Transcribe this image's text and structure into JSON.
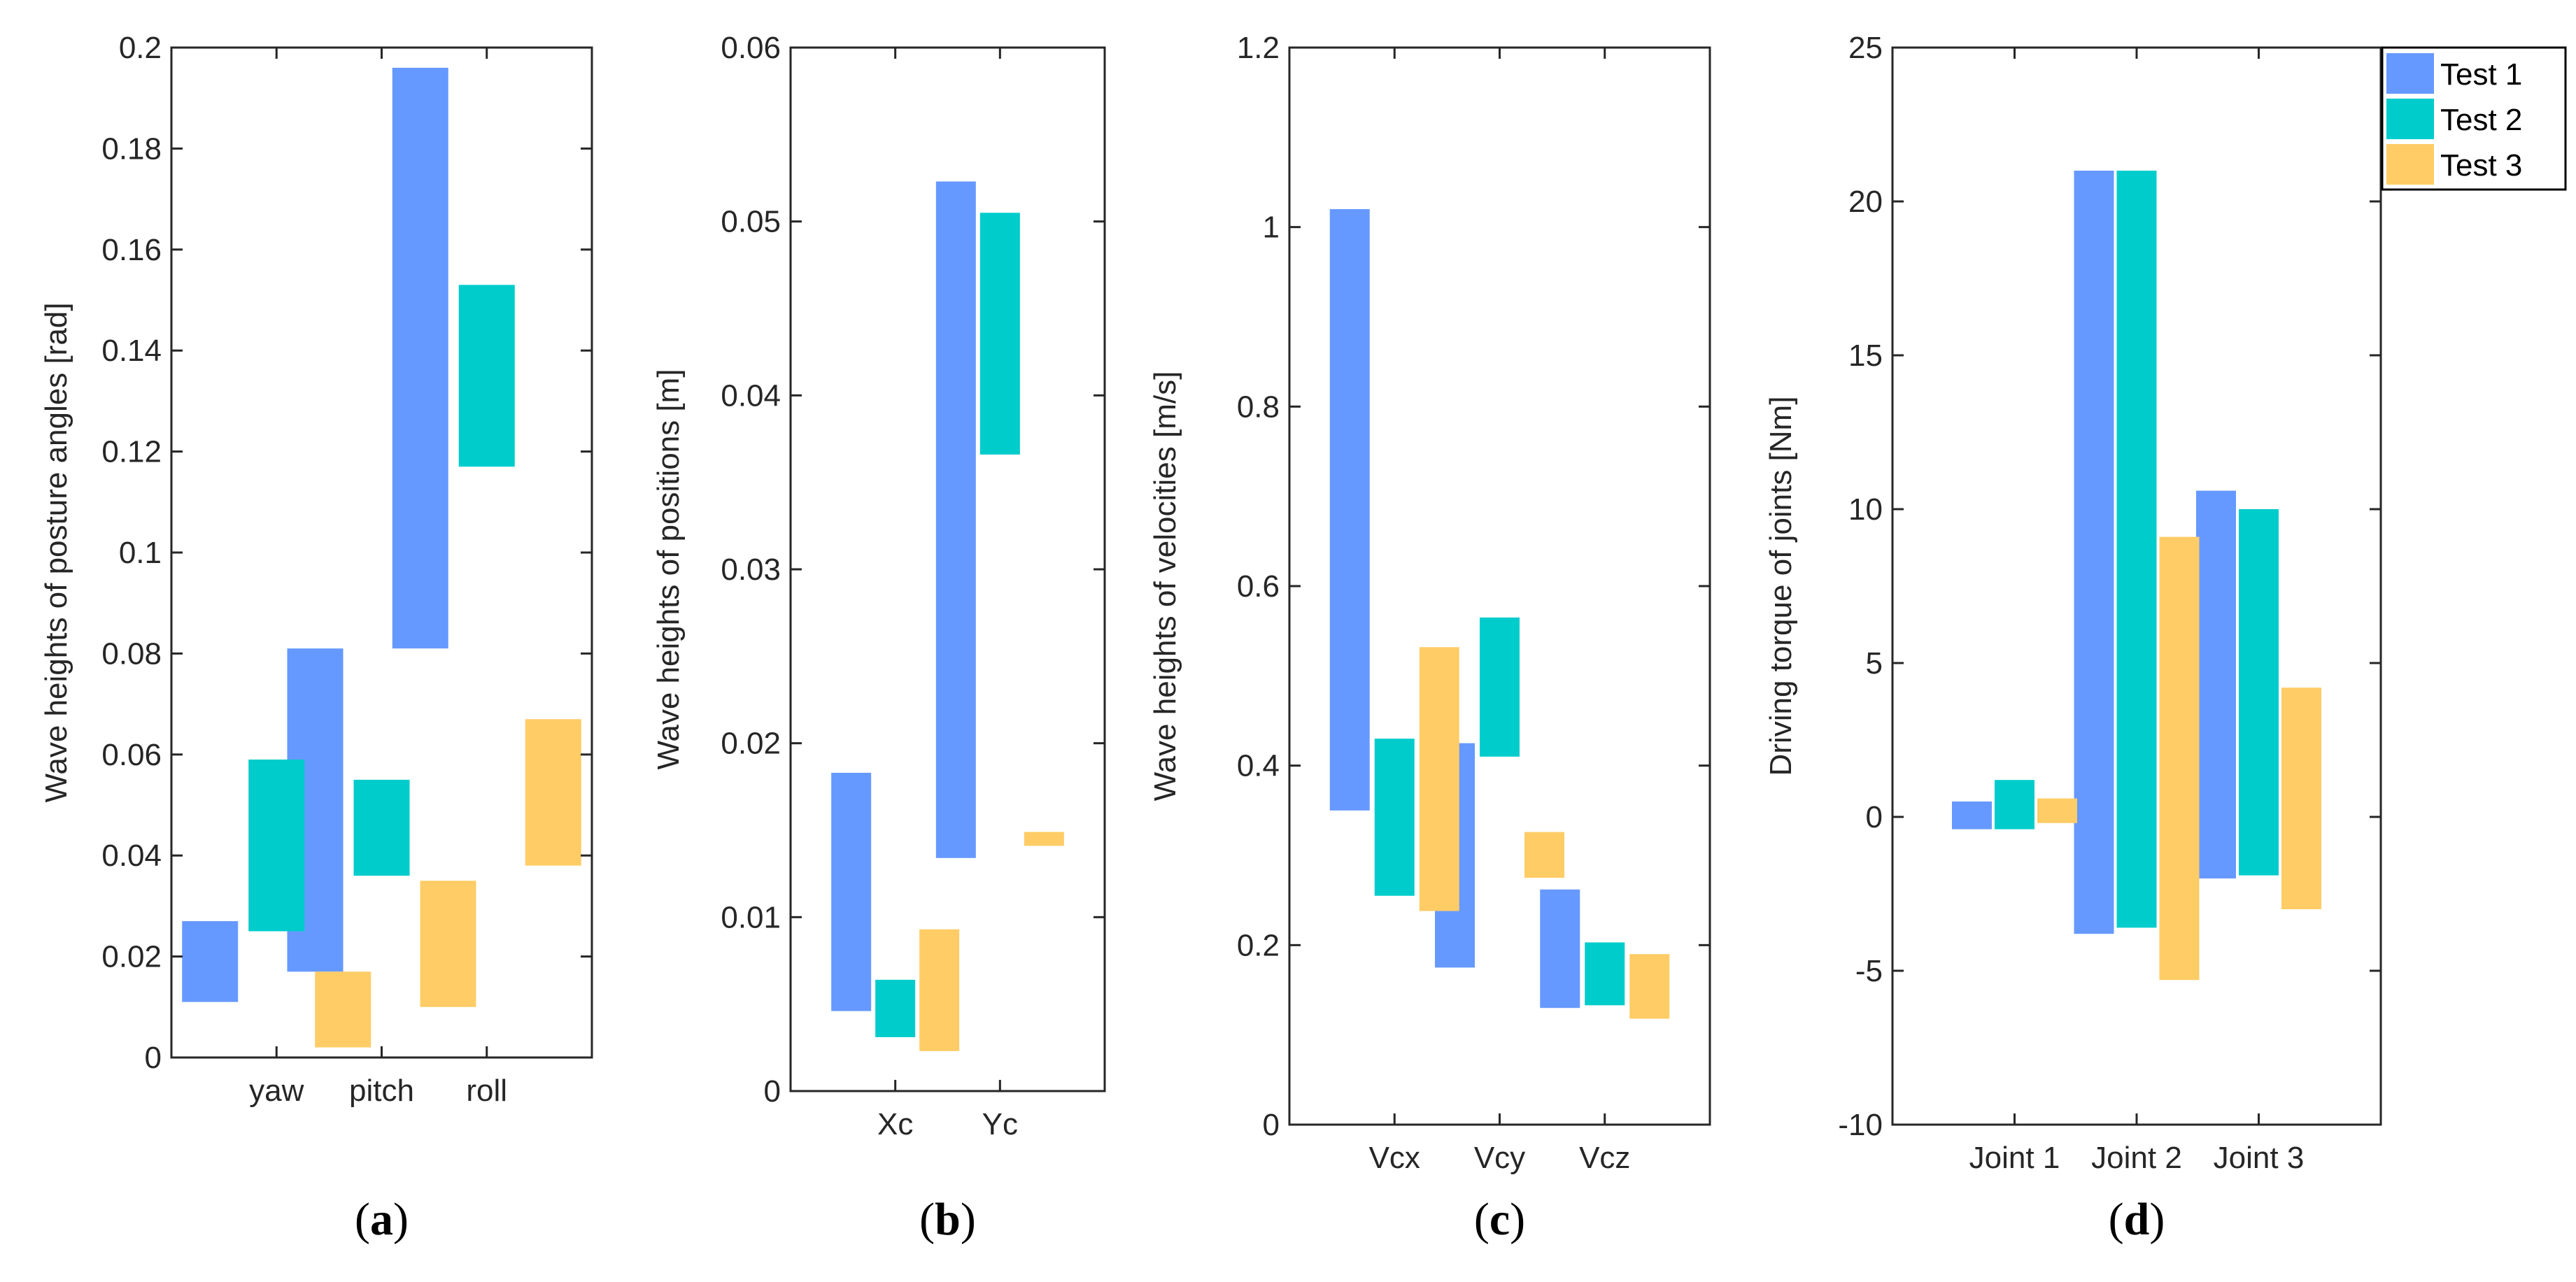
{
  "chart_data": [
    {
      "type": "floating-bar",
      "panel": "(a)",
      "panel_parts": [
        "(",
        "a",
        ")"
      ],
      "categories": [
        "yaw",
        "pitch",
        "roll"
      ],
      "ylabel": "Wave heights of posture angles [rad]",
      "ylim": [
        0,
        0.2
      ],
      "yticks": [
        0,
        0.02,
        0.04,
        0.06,
        0.08,
        0.1,
        0.12,
        0.14,
        0.16,
        0.18,
        0.2
      ],
      "ytick_labels": [
        "0",
        "0.02",
        "0.04",
        "0.06",
        "0.08",
        "0.1",
        "0.12",
        "0.14",
        "0.16",
        "0.18",
        "0.2"
      ],
      "series": [
        {
          "name": "Test 1",
          "ranges": [
            [
              0.011,
              0.027
            ],
            [
              0.017,
              0.081
            ],
            [
              0.081,
              0.196
            ]
          ]
        },
        {
          "name": "Test 2",
          "ranges": [
            [
              0.025,
              0.059
            ],
            [
              0.036,
              0.055
            ],
            [
              0.117,
              0.153
            ]
          ]
        },
        {
          "name": "Test 3",
          "ranges": [
            [
              0.002,
              0.017
            ],
            [
              0.01,
              0.035
            ],
            [
              0.038,
              0.067
            ]
          ]
        }
      ]
    },
    {
      "type": "floating-bar",
      "panel": "(b)",
      "panel_parts": [
        "(",
        "b",
        ")"
      ],
      "categories": [
        "Xc",
        "Yc"
      ],
      "ylabel": "Wave heights of positions [m]",
      "ylim": [
        0,
        0.06
      ],
      "yticks": [
        0,
        0.01,
        0.02,
        0.03,
        0.04,
        0.05,
        0.06
      ],
      "ytick_labels": [
        "0",
        "0.01",
        "0.02",
        "0.03",
        "0.04",
        "0.05",
        "0.06"
      ],
      "series": [
        {
          "name": "Test 1",
          "ranges": [
            [
              0.0046,
              0.0183
            ],
            [
              0.0134,
              0.0523
            ]
          ]
        },
        {
          "name": "Test 2",
          "ranges": [
            [
              0.0031,
              0.0064
            ],
            [
              0.0366,
              0.0505
            ]
          ]
        },
        {
          "name": "Test 3",
          "ranges": [
            [
              0.0023,
              0.0093
            ],
            [
              0.0141,
              0.0149
            ]
          ]
        }
      ]
    },
    {
      "type": "floating-bar",
      "panel": "(c)",
      "panel_parts": [
        "(",
        "c",
        ")"
      ],
      "categories": [
        "Vcx",
        "Vcy",
        "Vcz"
      ],
      "ylabel": "Wave heights of velocities [m/s]",
      "ylim": [
        0,
        1.2
      ],
      "yticks": [
        0,
        0.2,
        0.4,
        0.6,
        0.8,
        1,
        1.2
      ],
      "ytick_labels": [
        "0",
        "0.2",
        "0.4",
        "0.6",
        "0.8",
        "1",
        "1.2"
      ],
      "series": [
        {
          "name": "Test 1",
          "ranges": [
            [
              0.35,
              1.02
            ],
            [
              0.175,
              0.425
            ],
            [
              0.13,
              0.262
            ]
          ]
        },
        {
          "name": "Test 2",
          "ranges": [
            [
              0.255,
              0.43
            ],
            [
              0.41,
              0.565
            ],
            [
              0.133,
              0.203
            ]
          ]
        },
        {
          "name": "Test 3",
          "ranges": [
            [
              0.238,
              0.532
            ],
            [
              0.275,
              0.326
            ],
            [
              0.118,
              0.19
            ]
          ]
        }
      ]
    },
    {
      "type": "floating-bar",
      "panel": "(d)",
      "panel_parts": [
        "(",
        "d",
        ")"
      ],
      "categories": [
        "Joint 1",
        "Joint 2",
        "Joint 3"
      ],
      "ylabel": "Driving torque of joints [Nm]",
      "ylim": [
        -10,
        25
      ],
      "yticks": [
        -10,
        -5,
        0,
        5,
        10,
        15,
        20,
        25
      ],
      "ytick_labels": [
        "-10",
        "-5",
        "0",
        "5",
        "10",
        "15",
        "20",
        "25"
      ],
      "series": [
        {
          "name": "Test 1",
          "ranges": [
            [
              -0.4,
              0.5
            ],
            [
              -3.8,
              21.0
            ],
            [
              -2.0,
              10.6
            ]
          ]
        },
        {
          "name": "Test 2",
          "ranges": [
            [
              -0.4,
              1.2
            ],
            [
              -3.6,
              21.0
            ],
            [
              -1.9,
              10.0
            ]
          ]
        },
        {
          "name": "Test 3",
          "ranges": [
            [
              -0.2,
              0.6
            ],
            [
              -5.3,
              9.1
            ],
            [
              -3.0,
              4.2
            ]
          ]
        }
      ]
    }
  ],
  "legend": {
    "position": "top-right",
    "entries": [
      {
        "label": "Test 1",
        "color": "#6699ff"
      },
      {
        "label": "Test 2",
        "color": "#00cccc"
      },
      {
        "label": "Test 3",
        "color": "#ffcc66"
      }
    ]
  }
}
